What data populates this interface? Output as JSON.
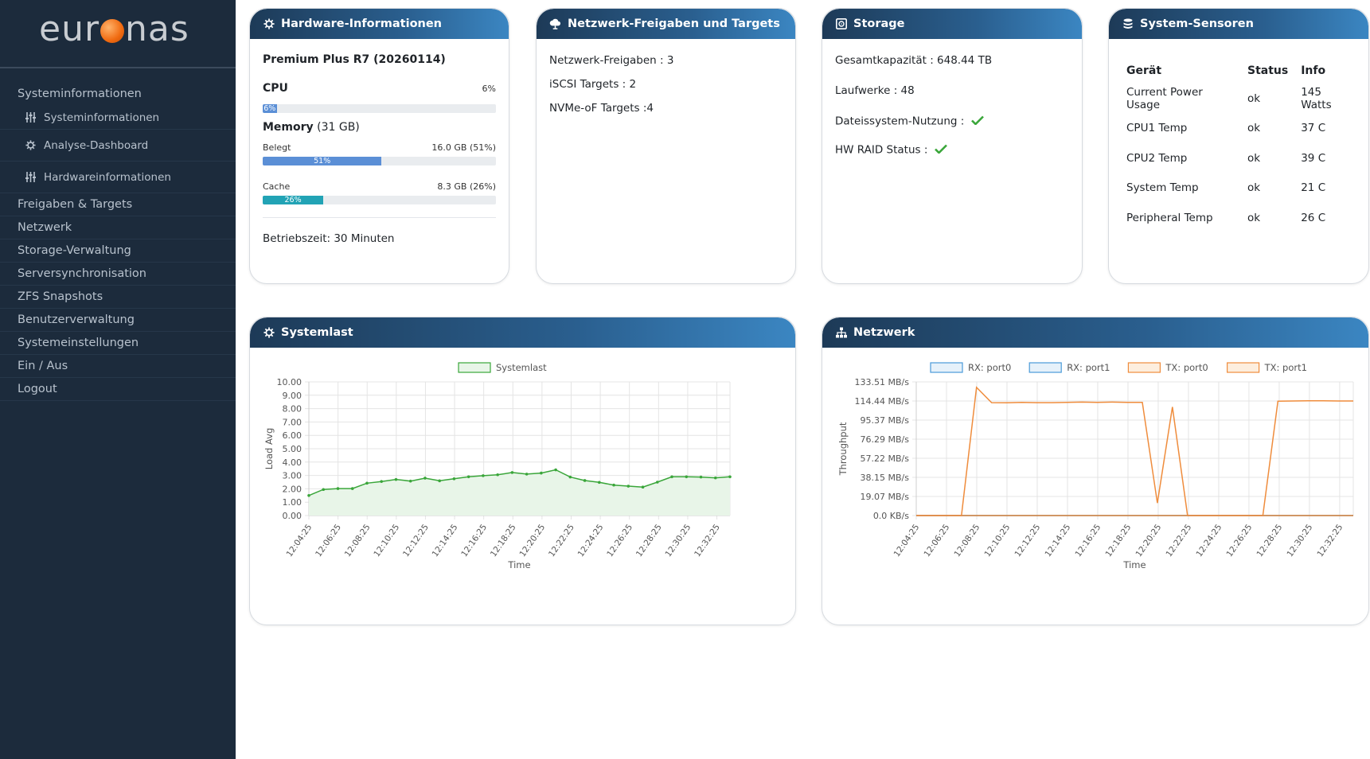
{
  "brand": {
    "logo_prefix": "eur",
    "logo_suffix": "nas",
    "logo_accent_color": "#f06a10"
  },
  "sidebar": {
    "group_title": "Systeminformationen",
    "sub_items": [
      {
        "label": "Systeminformationen",
        "icon": "sliders-icon"
      },
      {
        "label": "Analyse-Dashboard",
        "icon": "gear-icon"
      },
      {
        "label": "Hardwareinformationen",
        "icon": "sliders-icon"
      }
    ],
    "items": [
      {
        "label": "Freigaben & Targets"
      },
      {
        "label": "Netzwerk"
      },
      {
        "label": "Storage-Verwaltung"
      },
      {
        "label": "Serversynchronisation"
      },
      {
        "label": "ZFS Snapshots"
      },
      {
        "label": "Benutzerverwaltung"
      },
      {
        "label": "Systemeinstellungen"
      },
      {
        "label": "Ein / Aus"
      },
      {
        "label": "Logout"
      }
    ]
  },
  "hardware": {
    "title": "Hardware-Informationen",
    "icon": "gear-icon",
    "model": "Premium Plus R7 (20260114)",
    "cpu_label": "CPU",
    "cpu_value": "6%",
    "cpu_percent": 6,
    "cpu_bar_text": "6%",
    "memory_label": "Memory",
    "memory_total": "(31 GB)",
    "used_label": "Belegt",
    "used_value": "16.0 GB (51%)",
    "used_percent": 51,
    "used_bar_text": "51%",
    "cache_label": "Cache",
    "cache_value": "8.3 GB (26%)",
    "cache_percent": 26,
    "cache_bar_text": "26%",
    "uptime": "Betriebszeit: 30 Minuten",
    "colors": {
      "cpu": "#5b8fd6",
      "used": "#5b8fd6",
      "cache": "#22a3b5"
    }
  },
  "shares": {
    "title": "Netzwerk-Freigaben und Targets",
    "icon": "cloud-icon",
    "lines": [
      "Netzwerk-Freigaben : 3",
      "iSCSI Targets : 2",
      "NVMe-oF Targets :4"
    ]
  },
  "storage": {
    "title": "Storage",
    "icon": "disk-icon",
    "capacity": "Gesamtkapazität : 648.44 TB",
    "drives": "Laufwerke : 48",
    "fs_usage": "Dateissystem-Nutzung :",
    "raid_status": "HW RAID Status :",
    "check_color": "#3aa63a"
  },
  "sensors": {
    "title": "System-Sensoren",
    "icon": "database-icon",
    "headers": [
      "Gerät",
      "Status",
      "Info"
    ],
    "rows": [
      [
        "Current Power Usage",
        "ok",
        "145 Watts"
      ],
      [
        "CPU1 Temp",
        "ok",
        "37 C"
      ],
      [
        "CPU2 Temp",
        "ok",
        "39 C"
      ],
      [
        "System Temp",
        "ok",
        "21 C"
      ],
      [
        "Peripheral Temp",
        "ok",
        "26 C"
      ]
    ]
  },
  "systemlast": {
    "title": "Systemlast",
    "icon": "gear-icon"
  },
  "netzwerk": {
    "title": "Netzwerk",
    "icon": "network-icon"
  },
  "chart_data": [
    {
      "type": "area",
      "title": "",
      "xlabel": "Time",
      "ylabel": "Load Avg",
      "ylim": [
        0,
        10
      ],
      "yticks": [
        "10.00",
        "9.00",
        "8.00",
        "7.00",
        "6.00",
        "5.00",
        "4.00",
        "3.00",
        "2.00",
        "1.00",
        "0.00"
      ],
      "xticks": [
        "12:04:25",
        "12:06:25",
        "12:08:25",
        "12:10:25",
        "12:12:25",
        "12:14:25",
        "12:16:25",
        "12:18:25",
        "12:20:25",
        "12:22:25",
        "12:24:25",
        "12:26:25",
        "12:28:25",
        "12:30:25",
        "12:32:25"
      ],
      "grid": true,
      "legend": "top",
      "series": [
        {
          "name": "Systemlast",
          "color": "#3aa63a",
          "fill": "#e8f5e8",
          "values": [
            1.5,
            1.95,
            2.02,
            2.02,
            2.42,
            2.55,
            2.7,
            2.58,
            2.8,
            2.6,
            2.75,
            2.9,
            2.98,
            3.05,
            3.22,
            3.1,
            3.18,
            3.42,
            2.88,
            2.62,
            2.48,
            2.28,
            2.2,
            2.13,
            2.5,
            2.9,
            2.9,
            2.88,
            2.82,
            2.9
          ]
        }
      ]
    },
    {
      "type": "line",
      "title": "",
      "xlabel": "Time",
      "ylabel": "Throughput",
      "ylim": [
        0,
        133.51
      ],
      "yticks": [
        "133.51 MB/s",
        "114.44 MB/s",
        "95.37 MB/s",
        "76.29 MB/s",
        "57.22 MB/s",
        "38.15 MB/s",
        "19.07 MB/s",
        "0.0 KB/s"
      ],
      "xticks": [
        "12:04:25",
        "12:06:25",
        "12:08:25",
        "12:10:25",
        "12:12:25",
        "12:14:25",
        "12:16:25",
        "12:18:25",
        "12:20:25",
        "12:22:25",
        "12:24:25",
        "12:26:25",
        "12:28:25",
        "12:30:25",
        "12:32:25"
      ],
      "grid": true,
      "legend": "top",
      "series": [
        {
          "name": "RX: port0",
          "color": "#4a9ad8",
          "fill": "#e6f1fa",
          "values": [
            0,
            0,
            0,
            0,
            0,
            0,
            0,
            0,
            0,
            0,
            0,
            0,
            0,
            0,
            0,
            0,
            0,
            0,
            0,
            0,
            0,
            0,
            0,
            0,
            0,
            0,
            0,
            0,
            0,
            0
          ]
        },
        {
          "name": "RX: port1",
          "color": "#4a9ad8",
          "fill": "#e6f1fa",
          "values": [
            0,
            0,
            0,
            0,
            0,
            0,
            0,
            0,
            0,
            0,
            0,
            0,
            0,
            0,
            0,
            0,
            0,
            0,
            0,
            0,
            0,
            0,
            0,
            0,
            0,
            0,
            0,
            0,
            0,
            0
          ]
        },
        {
          "name": "TX: port0",
          "color": "#ef8c3c",
          "fill": "#fdeede",
          "values": [
            0,
            0,
            0,
            0,
            128.0,
            112.8,
            112.6,
            113.0,
            112.8,
            112.8,
            113.0,
            113.3,
            113.0,
            113.3,
            113.0,
            113.0,
            12.5,
            108.5,
            0,
            0,
            0,
            0,
            0,
            0,
            114.2,
            114.4,
            114.6,
            114.6,
            114.4,
            114.4
          ]
        },
        {
          "name": "TX: port1",
          "color": "#ef8c3c",
          "fill": "#fdeede",
          "values": [
            0,
            0,
            0,
            0,
            0,
            0,
            0,
            0,
            0,
            0,
            0,
            0,
            0,
            0,
            0,
            0,
            0,
            0,
            0,
            0,
            0,
            0,
            0,
            0,
            0,
            0,
            0,
            0,
            0,
            0
          ]
        }
      ]
    }
  ]
}
